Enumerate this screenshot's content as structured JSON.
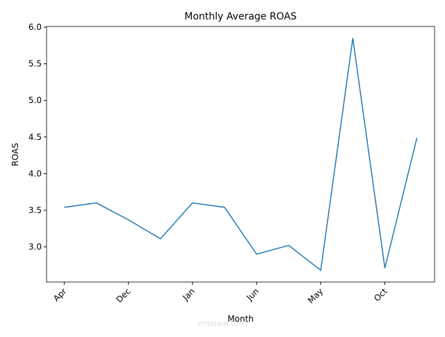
{
  "chart_data": {
    "type": "line",
    "title": "Monthly Average ROAS",
    "x_label": "Month",
    "y_label": "ROAS",
    "categories": [
      "Apr",
      null,
      "Dec",
      null,
      "Jan",
      null,
      "Jun",
      null,
      "May",
      null,
      "Oct",
      null
    ],
    "series": [
      {
        "name": "ROAS",
        "color": "#1f77b4",
        "values": [
          3.54,
          3.6,
          3.37,
          3.11,
          3.6,
          3.54,
          2.9,
          3.02,
          2.68,
          5.85,
          2.71,
          4.49
        ]
      }
    ],
    "ylim": [
      2.52,
      6.01
    ],
    "yticks": [
      {
        "value": 3,
        "label": "3.0"
      },
      {
        "value": 3.5,
        "label": "3.5"
      },
      {
        "value": 4,
        "label": "4.0"
      },
      {
        "value": 4.5,
        "label": "4.5"
      },
      {
        "value": 5,
        "label": "5.0"
      },
      {
        "value": 5.5,
        "label": "5.5"
      },
      {
        "value": 6,
        "label": "6.0"
      }
    ],
    "grid": false,
    "watermark": "mostaql.com"
  }
}
